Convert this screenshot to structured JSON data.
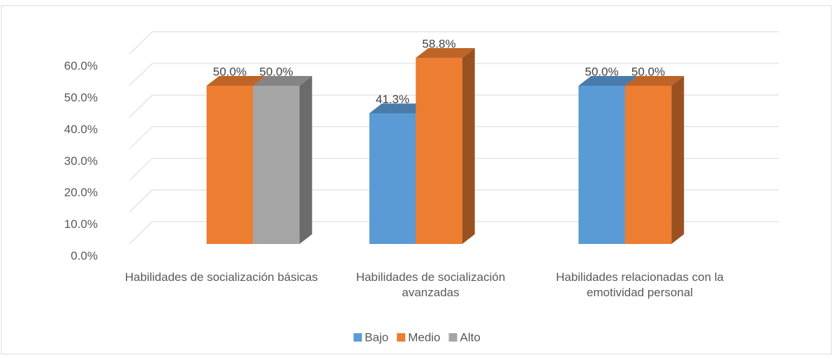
{
  "chart_data": {
    "type": "bar3d",
    "categories": [
      "Habilidades de socialización básicas",
      "Habilidades de socialización avanzadas",
      "Habilidades relacionadas con la emotividad personal"
    ],
    "series": [
      {
        "name": "Bajo",
        "color": "#5b9bd5",
        "values": [
          null,
          41.3,
          50.0
        ],
        "value_labels": [
          null,
          "41.3%",
          "50.0%"
        ]
      },
      {
        "name": "Medio",
        "color": "#ed7d31",
        "values": [
          50.0,
          58.8,
          50.0
        ],
        "value_labels": [
          "50.0%",
          "58.8%",
          "50.0%"
        ]
      },
      {
        "name": "Alto",
        "color": "#a5a5a5",
        "values": [
          50.0,
          null,
          null
        ],
        "value_labels": [
          "50.0%",
          null,
          null
        ]
      }
    ],
    "ylim": [
      0,
      60
    ],
    "yticks": [
      {
        "value": 0,
        "label": "0.0%"
      },
      {
        "value": 10,
        "label": "10.0%"
      },
      {
        "value": 20,
        "label": "20.0%"
      },
      {
        "value": 30,
        "label": "30.0%"
      },
      {
        "value": 40,
        "label": "40.0%"
      },
      {
        "value": 50,
        "label": "50.0%"
      },
      {
        "value": 60,
        "label": "60.0%"
      }
    ],
    "grid": true,
    "legend": "bottom"
  }
}
